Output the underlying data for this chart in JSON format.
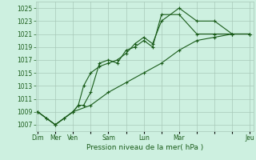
{
  "title": "",
  "xlabel": "Pression niveau de la mer( hPa )",
  "ylabel": "",
  "bg_color": "#cdf0e0",
  "grid_color": "#a8c8b8",
  "line_color": "#1a5c1a",
  "yticks": [
    1007,
    1009,
    1011,
    1013,
    1015,
    1017,
    1019,
    1021,
    1023,
    1025
  ],
  "ylim": [
    1006.0,
    1026.0
  ],
  "xlim": [
    -0.1,
    12.2
  ],
  "xtick_labels": [
    "Dim",
    "Mer",
    "Ven",
    "",
    "Sam",
    "",
    "Lun",
    "",
    "Mar",
    "",
    "",
    "",
    "Jeu"
  ],
  "xtick_positions": [
    0,
    1,
    2,
    3,
    4,
    5,
    6,
    7,
    8,
    9,
    10,
    11,
    12
  ],
  "series": [
    {
      "x": [
        0,
        0.5,
        1,
        1.5,
        2,
        2.3,
        2.6,
        3.0,
        3.5,
        4.0,
        4.5,
        5.0,
        5.5,
        6.0,
        6.5,
        7.0,
        8.0,
        9.0,
        10.0,
        11.0,
        12.0
      ],
      "y": [
        1009,
        1008,
        1007,
        1008,
        1009,
        1010,
        1013,
        1015,
        1016,
        1016.5,
        1017,
        1018,
        1019.5,
        1020.5,
        1019.5,
        1023,
        1025,
        1023,
        1023,
        1021,
        1021
      ]
    },
    {
      "x": [
        0,
        0.5,
        1,
        1.5,
        2,
        2.3,
        2.6,
        3.0,
        3.5,
        4.0,
        4.5,
        5.0,
        5.5,
        6.0,
        6.5,
        7.0,
        8.0,
        9.0,
        10.0,
        11.0,
        12.0
      ],
      "y": [
        1009,
        1008,
        1007,
        1008,
        1009,
        1010,
        1010,
        1012,
        1016.5,
        1017,
        1016.5,
        1018.5,
        1019,
        1020,
        1019,
        1024,
        1024,
        1021,
        1021,
        1021,
        1021
      ]
    },
    {
      "x": [
        0,
        1,
        2,
        3,
        4,
        5,
        6,
        7,
        8,
        9,
        10,
        11,
        12
      ],
      "y": [
        1009,
        1007,
        1009,
        1010,
        1012,
        1013.5,
        1015,
        1016.5,
        1018.5,
        1020,
        1020.5,
        1021,
        1021
      ]
    }
  ]
}
